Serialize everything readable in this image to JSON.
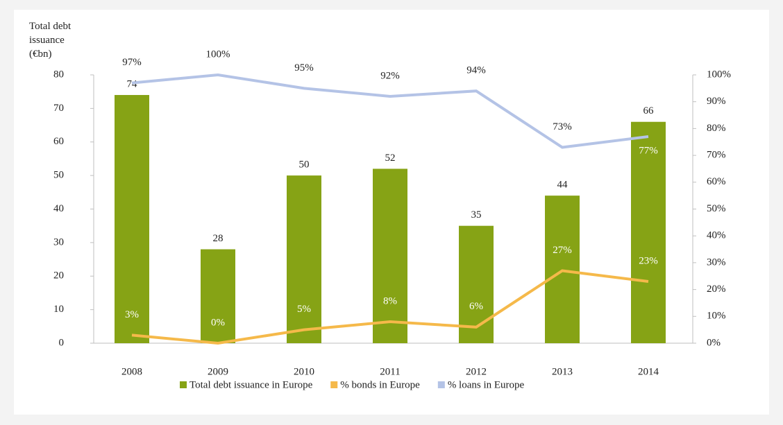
{
  "chart_data": {
    "type": "bar",
    "y_label": "Total debt issuance (€bn)",
    "categories": [
      "2008",
      "2009",
      "2010",
      "2011",
      "2012",
      "2013",
      "2014"
    ],
    "ylim": [
      0,
      80
    ],
    "yticks": [
      0,
      10,
      20,
      30,
      40,
      50,
      60,
      70,
      80
    ],
    "y2lim": [
      0,
      100
    ],
    "y2ticks": [
      {
        "value": 0,
        "label": "0%"
      },
      {
        "value": 10,
        "label": "10%"
      },
      {
        "value": 20,
        "label": "20%"
      },
      {
        "value": 30,
        "label": "30%"
      },
      {
        "value": 40,
        "label": "40%"
      },
      {
        "value": 50,
        "label": "50%"
      },
      {
        "value": 60,
        "label": "60%"
      },
      {
        "value": 70,
        "label": "70%"
      },
      {
        "value": 80,
        "label": "80%"
      },
      {
        "value": 90,
        "label": "90%"
      },
      {
        "value": 100,
        "label": "100%"
      }
    ],
    "series": [
      {
        "name": "Total debt issuance in Europe",
        "type": "bar",
        "color": "#86a315",
        "values": [
          74,
          28,
          50,
          52,
          35,
          44,
          66
        ]
      },
      {
        "name": "% bonds in Europe",
        "type": "line",
        "axis": "y2",
        "color": "#f5b94a",
        "values": [
          3,
          0,
          5,
          8,
          6,
          27,
          23
        ],
        "value_labels": [
          "3%",
          "0%",
          "5%",
          "8%",
          "6%",
          "27%",
          "23%"
        ]
      },
      {
        "name": "% loans in Europe",
        "type": "line",
        "axis": "y2",
        "color": "#b4c3e6",
        "values": [
          97,
          100,
          95,
          92,
          94,
          73,
          77
        ],
        "value_labels": [
          "97%",
          "100%",
          "95%",
          "92%",
          "94%",
          "73%",
          "77%"
        ]
      }
    ],
    "legend": "bottom"
  }
}
